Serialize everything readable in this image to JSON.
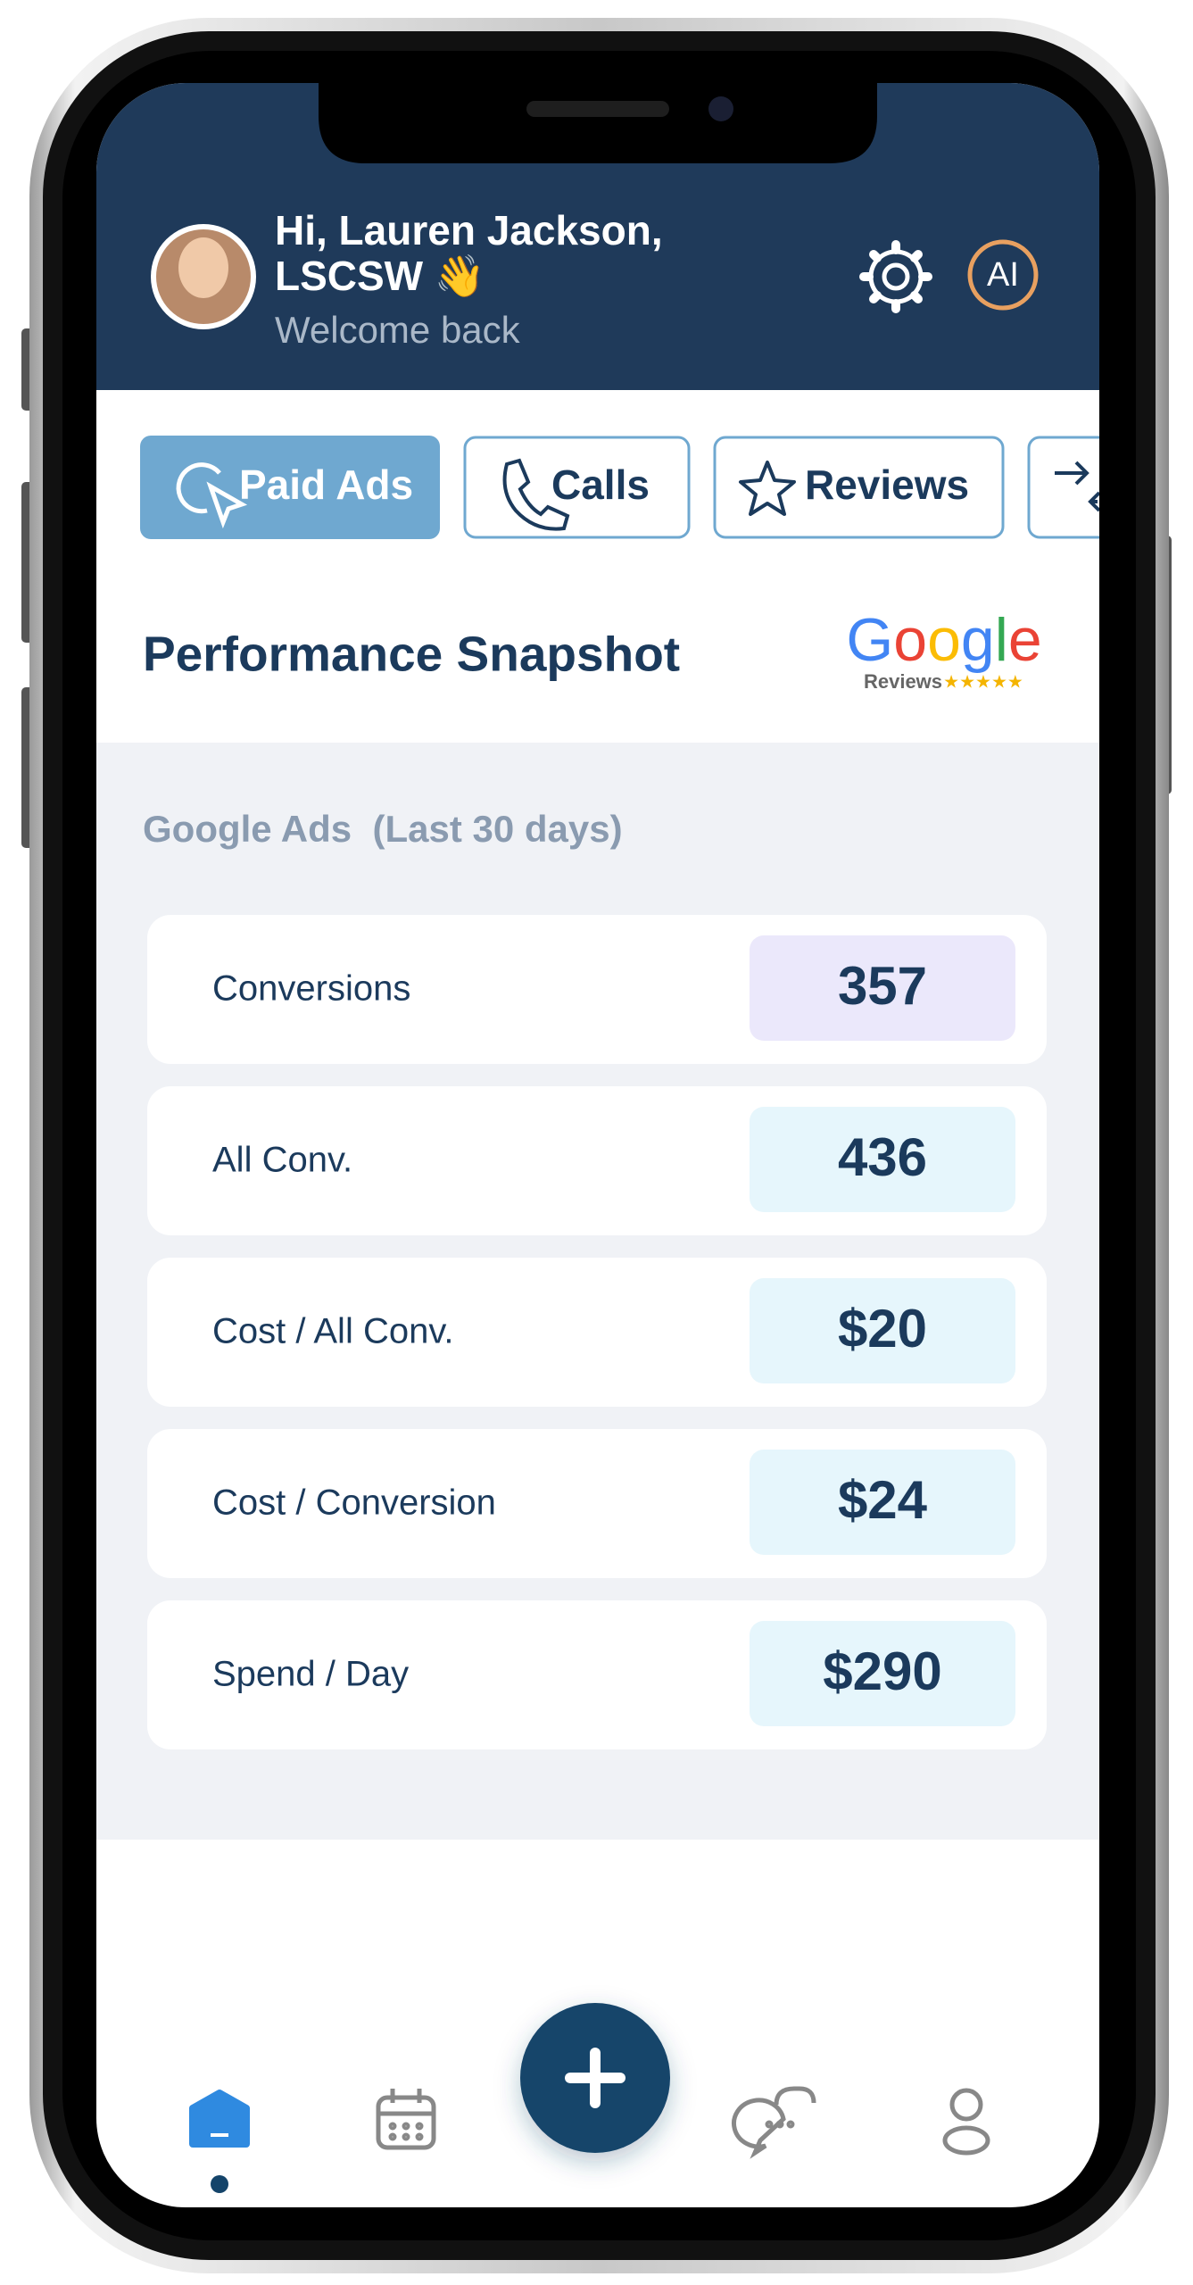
{
  "header": {
    "greeting": [
      "Hi, Lauren Jackson,",
      "LSCSW 👋"
    ],
    "subtitle": "Welcome back",
    "ai_button": "AI"
  },
  "tabs": [
    "Paid Ads",
    "Calls",
    "Reviews"
  ],
  "section": {
    "title": "Performance Snapshot",
    "logo": "Google",
    "logo_caption": "Reviews",
    "logo_rating": "★★★★★"
  },
  "panel": {
    "title": "Google Ads  (Last 30 days)",
    "metrics": [
      {
        "label": "Conversions",
        "value": "357"
      },
      {
        "label": "All Conv.",
        "value": "436"
      },
      {
        "label": "Cost / All Conv.",
        "value": "$20"
      },
      {
        "label": "Cost / Conversion",
        "value": "$24"
      },
      {
        "label": "Spend / Day",
        "value": "$290"
      }
    ]
  }
}
